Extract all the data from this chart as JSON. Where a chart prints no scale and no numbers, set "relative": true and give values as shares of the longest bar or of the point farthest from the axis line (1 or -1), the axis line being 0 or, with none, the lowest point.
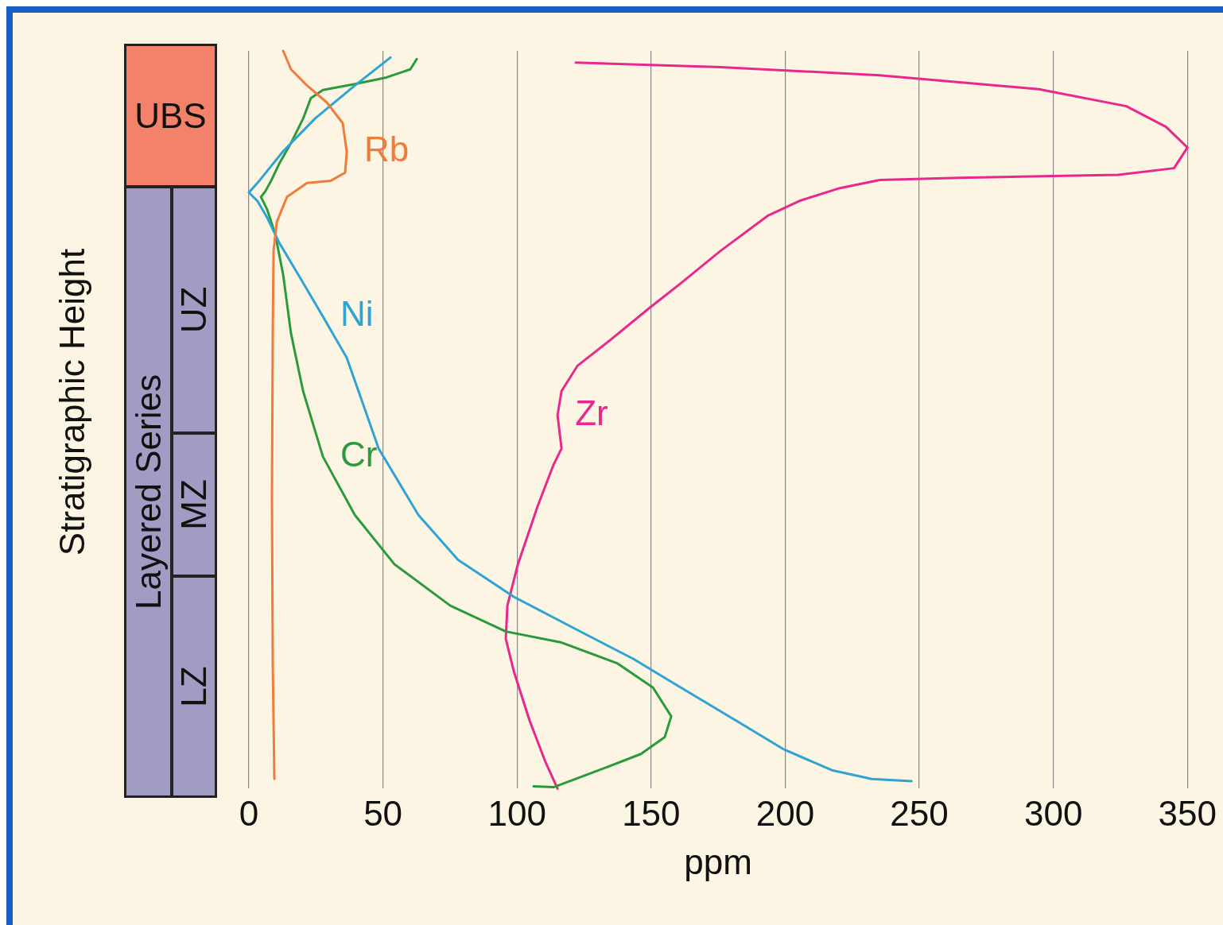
{
  "chart_data": {
    "type": "line",
    "relative": true,
    "xlabel": "ppm",
    "ylabel": "Stratigraphic Height",
    "xlim": [
      0,
      350
    ],
    "xticks": [
      0,
      50,
      100,
      150,
      200,
      250,
      300,
      350
    ],
    "grid": "x",
    "annotations": [
      "UBS",
      "Layered Series",
      "UZ",
      "MZ",
      "LZ"
    ],
    "series": [
      {
        "name": "Rb",
        "color": "#f07c3c",
        "x": [
          12.8,
          15.7,
          21.7,
          29.1,
          35.0,
          36.5,
          35.9,
          30.6,
          21.7,
          14.2,
          10.4,
          9.2,
          8.9,
          8.6,
          8.9,
          9.5
        ],
        "values": [
          1.0,
          0.975,
          0.953,
          0.93,
          0.902,
          0.863,
          0.835,
          0.824,
          0.821,
          0.802,
          0.768,
          0.729,
          0.617,
          0.394,
          0.17,
          0.013
        ]
      },
      {
        "name": "Ni",
        "color": "#2ea3d4",
        "x": [
          52.8,
          39.5,
          24.6,
          12.8,
          3.9,
          0,
          3.3,
          6.8,
          11.3,
          18.7,
          27.6,
          36.5,
          48.4,
          63.2,
          78.0,
          98.8,
          122.5,
          143.3,
          161.1,
          181.8,
          199.6,
          217.4,
          232.3,
          247.1
        ],
        "values": [
          0.991,
          0.953,
          0.908,
          0.864,
          0.824,
          0.808,
          0.796,
          0.774,
          0.74,
          0.695,
          0.64,
          0.584,
          0.461,
          0.371,
          0.31,
          0.26,
          0.215,
          0.176,
          0.137,
          0.092,
          0.053,
          0.025,
          0.013,
          0.01
        ]
      },
      {
        "name": "Cr",
        "color": "#2a9a3c",
        "x": [
          62.6,
          60.2,
          51.3,
          39.5,
          27.6,
          23.1,
          20.2,
          15.7,
          11.3,
          8.3,
          6.2,
          4.5,
          6.8,
          9.8,
          12.8,
          15.7,
          20.2,
          27.6,
          39.5,
          54.3,
          75.1,
          95.8,
          116.6,
          137.3,
          150.7,
          157.5,
          155.1,
          146.2,
          128.4,
          113.6,
          106.2
        ],
        "values": [
          0.989,
          0.975,
          0.964,
          0.955,
          0.947,
          0.936,
          0.908,
          0.875,
          0.847,
          0.824,
          0.81,
          0.802,
          0.785,
          0.752,
          0.696,
          0.617,
          0.539,
          0.45,
          0.371,
          0.304,
          0.248,
          0.213,
          0.198,
          0.17,
          0.137,
          0.098,
          0.07,
          0.047,
          0.022,
          0.002,
          0.003
        ]
      },
      {
        "name": "Zr",
        "color": "#e8288c",
        "x": [
          121.9,
          175.9,
          235.2,
          294.6,
          327.2,
          342.0,
          350.0,
          345.0,
          324.2,
          264.9,
          235.2,
          220.4,
          205.6,
          193.7,
          175.9,
          161.1,
          149.2,
          134.4,
          122.5,
          116.6,
          115.1,
          116.6,
          113.6,
          107.7,
          100.3,
          96.4,
          95.8,
          98.8,
          104.7,
          110.6,
          115.1
        ],
        "values": [
          0.984,
          0.978,
          0.967,
          0.948,
          0.925,
          0.897,
          0.869,
          0.841,
          0.832,
          0.828,
          0.825,
          0.814,
          0.797,
          0.777,
          0.729,
          0.685,
          0.651,
          0.607,
          0.573,
          0.539,
          0.506,
          0.461,
          0.439,
          0.383,
          0.304,
          0.248,
          0.203,
          0.159,
          0.092,
          0.036,
          0.0
        ]
      }
    ]
  }
}
